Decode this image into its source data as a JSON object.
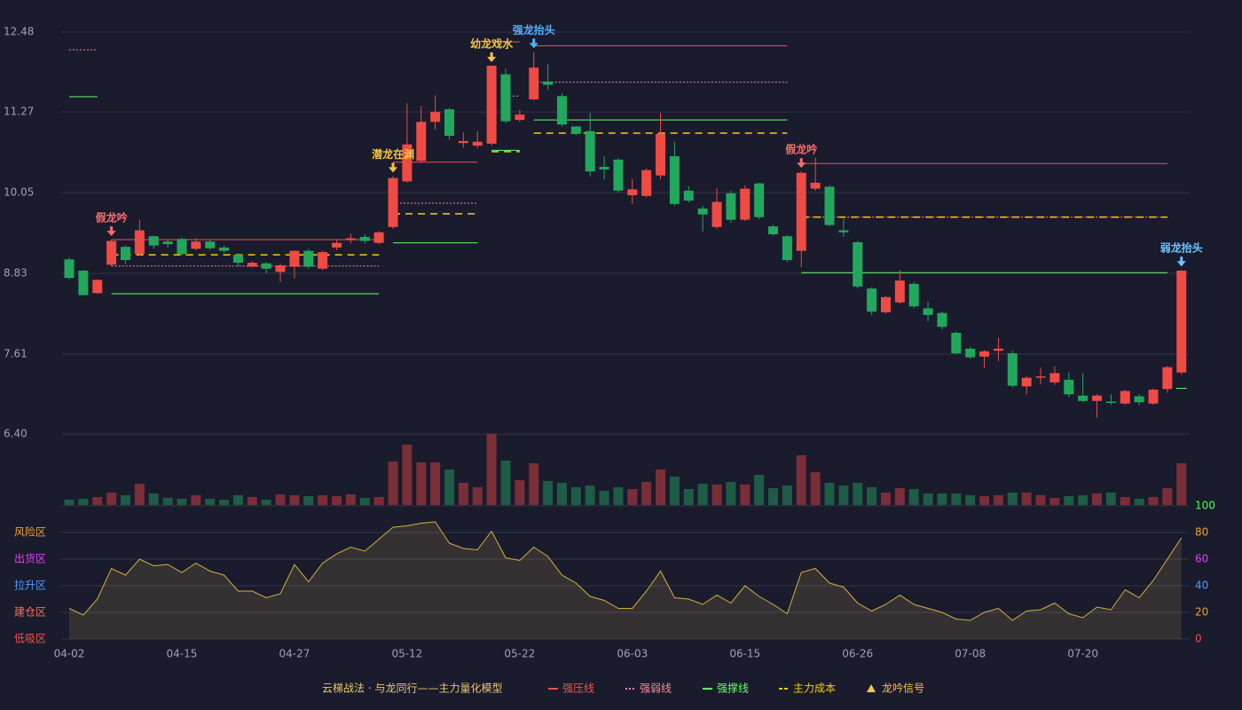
{
  "chart_data": {
    "type": "candlestick",
    "legend_title": "云梯战法 · 与龙同行——主力量化模型",
    "categories": [
      "04-02",
      null,
      null,
      null,
      null,
      null,
      null,
      null,
      "04-15",
      null,
      null,
      null,
      null,
      null,
      null,
      null,
      "04-27",
      null,
      null,
      null,
      null,
      null,
      null,
      null,
      "05-12",
      null,
      null,
      null,
      null,
      null,
      null,
      null,
      "05-22",
      null,
      null,
      null,
      null,
      null,
      null,
      null,
      "06-03",
      null,
      null,
      null,
      null,
      null,
      null,
      null,
      "06-15",
      null,
      null,
      null,
      null,
      null,
      null,
      null,
      "06-26",
      null,
      null,
      null,
      null,
      null,
      null,
      null,
      "07-08",
      null,
      null,
      null,
      null,
      null,
      null,
      null,
      "07-20",
      null,
      null,
      null,
      null,
      null,
      null,
      null
    ],
    "open": [
      9.04,
      8.87,
      8.53,
      8.96,
      9.23,
      9.12,
      9.39,
      9.31,
      9.35,
      9.2,
      9.31,
      9.22,
      9.11,
      8.93,
      8.98,
      8.85,
      8.93,
      9.17,
      8.9,
      9.22,
      9.33,
      9.38,
      9.29,
      9.53,
      10.22,
      10.53,
      11.12,
      11.31,
      10.8,
      10.76,
      10.79,
      11.84,
      11.15,
      11.46,
      11.73,
      11.51,
      11.05,
      10.98,
      10.44,
      10.55,
      10.01,
      10.0,
      10.31,
      10.6,
      10.08,
      9.81,
      9.53,
      10.04,
      9.64,
      10.19,
      9.54,
      9.39,
      9.17,
      10.11,
      10.14,
      9.48,
      9.3,
      8.6,
      8.24,
      8.39,
      8.67,
      8.3,
      8.23,
      7.93,
      7.69,
      7.57,
      7.66,
      7.62,
      7.12,
      7.25,
      7.18,
      7.22,
      6.98,
      6.9,
      6.89,
      6.86,
      6.97,
      6.86,
      7.08,
      7.33
    ],
    "high": [
      9.07,
      8.88,
      8.74,
      9.34,
      9.25,
      9.64,
      9.4,
      9.33,
      9.37,
      9.36,
      9.34,
      9.25,
      9.13,
      9.01,
      9.0,
      8.98,
      9.18,
      9.2,
      9.17,
      9.35,
      9.43,
      9.42,
      9.47,
      10.3,
      11.4,
      11.36,
      11.52,
      11.33,
      10.96,
      10.98,
      11.97,
      11.93,
      11.3,
      12.18,
      11.99,
      11.55,
      11.06,
      11.26,
      10.6,
      10.57,
      10.26,
      10.42,
      11.26,
      10.82,
      10.15,
      9.85,
      10.12,
      10.08,
      10.16,
      10.2,
      9.56,
      9.41,
      10.37,
      10.58,
      10.16,
      9.65,
      9.32,
      8.62,
      8.49,
      8.88,
      8.7,
      8.4,
      8.25,
      7.95,
      7.72,
      7.67,
      7.86,
      7.66,
      7.27,
      7.4,
      7.42,
      7.33,
      7.32,
      7.0,
      7.0,
      7.07,
      7.0,
      7.09,
      7.43,
      8.88
    ],
    "low": [
      8.74,
      8.5,
      8.52,
      8.94,
      8.97,
      9.1,
      9.2,
      9.22,
      9.1,
      9.18,
      9.18,
      9.14,
      8.94,
      8.92,
      8.83,
      8.7,
      8.75,
      8.9,
      8.88,
      9.18,
      9.28,
      9.28,
      9.27,
      9.5,
      10.2,
      10.5,
      11.0,
      10.85,
      10.73,
      10.72,
      10.76,
      11.1,
      11.12,
      11.44,
      11.6,
      11.05,
      10.92,
      10.3,
      10.25,
      10.05,
      9.88,
      9.98,
      10.25,
      9.85,
      9.9,
      9.46,
      9.5,
      9.6,
      9.62,
      9.65,
      9.4,
      9.0,
      8.92,
      10.08,
      9.54,
      9.38,
      8.6,
      8.2,
      8.22,
      8.37,
      8.3,
      8.1,
      7.98,
      7.6,
      7.54,
      7.4,
      7.5,
      7.1,
      7.0,
      7.15,
      7.14,
      6.96,
      6.88,
      6.65,
      6.84,
      6.84,
      6.84,
      6.84,
      7.02,
      7.3
    ],
    "close": [
      8.76,
      8.5,
      8.73,
      9.32,
      9.03,
      9.48,
      9.25,
      9.27,
      9.12,
      9.31,
      9.21,
      9.17,
      8.99,
      8.99,
      8.9,
      8.95,
      9.17,
      8.93,
      9.15,
      9.29,
      9.36,
      9.32,
      9.45,
      10.27,
      10.78,
      11.12,
      11.27,
      10.91,
      10.83,
      10.82,
      11.97,
      11.13,
      11.23,
      11.94,
      11.68,
      11.08,
      10.94,
      10.37,
      10.4,
      10.08,
      10.1,
      10.39,
      10.94,
      9.88,
      9.93,
      9.72,
      9.91,
      9.64,
      10.11,
      9.68,
      9.42,
      9.03,
      10.35,
      10.2,
      9.56,
      9.45,
      8.63,
      8.25,
      8.47,
      8.72,
      8.33,
      8.2,
      8.02,
      7.62,
      7.56,
      7.65,
      7.69,
      7.13,
      7.25,
      7.27,
      7.32,
      7.0,
      6.9,
      6.98,
      6.87,
      7.05,
      6.88,
      7.07,
      7.41,
      8.87
    ],
    "up_color": "#ef4b44",
    "down_color": "#22a85e",
    "up_volume_color": "#7a2e38",
    "down_volume_color": "#1d5c45",
    "ylim": [
      6.4,
      12.48
    ],
    "yticks": [
      {
        "value": 6.4,
        "label": "6.40"
      },
      7.61,
      8.83,
      10.05,
      11.27,
      12.48
    ],
    "volume": [
      6,
      7,
      9,
      14,
      11,
      24,
      13,
      8,
      7,
      11,
      7,
      6,
      11,
      9,
      6,
      12,
      11,
      10,
      11,
      10,
      12,
      8,
      9,
      49,
      68,
      48,
      48,
      40,
      25,
      20,
      80,
      50,
      28,
      47,
      27,
      25,
      20,
      22,
      16,
      20,
      18,
      26,
      40,
      32,
      18,
      24,
      23,
      26,
      23,
      34,
      19,
      22,
      56,
      37,
      25,
      22,
      25,
      20,
      14,
      19,
      18,
      13,
      13,
      13,
      11,
      10,
      11,
      14,
      14,
      11,
      8,
      10,
      11,
      13,
      14,
      9,
      7,
      9,
      19,
      47
    ],
    "volume_lim": [
      0,
      80
    ],
    "indicator": {
      "color": "#d4b03a",
      "values": [
        23,
        18,
        30,
        53,
        48,
        60,
        55,
        56,
        50,
        57,
        51,
        48,
        36,
        36,
        31,
        34,
        56,
        43,
        57,
        64,
        69,
        66,
        75,
        84,
        85,
        87,
        88,
        72,
        68,
        67,
        81,
        61,
        59,
        69,
        62,
        48,
        42,
        32,
        29,
        23,
        23,
        36,
        51,
        31,
        30,
        26,
        33,
        27,
        40,
        32,
        26,
        19,
        50,
        53,
        42,
        39,
        27,
        21,
        26,
        33,
        26,
        23,
        20,
        15,
        14,
        20,
        23,
        14,
        21,
        22,
        27,
        19,
        16,
        24,
        22,
        37,
        31,
        44,
        60,
        76
      ],
      "ylim": [
        0,
        100
      ],
      "yticks": [
        0,
        20,
        40,
        60,
        80,
        100
      ],
      "tick_colors": [
        "#ef5350",
        "#f0a030",
        "#4f9dff",
        "#e040fb",
        "#f0a030",
        "#4cff4c"
      ],
      "zones": [
        {
          "value": 80,
          "label": "风险区",
          "color": "#f0a030"
        },
        {
          "value": 60,
          "label": "出货区",
          "color": "#e040fb"
        },
        {
          "value": 40,
          "label": "拉升区",
          "color": "#4f9dff"
        },
        {
          "value": 20,
          "label": "建仓区",
          "color": "#ff6b5b"
        },
        {
          "value": 0,
          "label": "低吸区",
          "color": "#ef5350"
        }
      ]
    },
    "legend": [
      {
        "name": "强压线",
        "color": "#ef5350",
        "style": "solid"
      },
      {
        "name": "强弱线",
        "color": "#ff8a9a",
        "style": "dotted"
      },
      {
        "name": "强撑线",
        "color": "#66ff66",
        "style": "solid"
      },
      {
        "name": "主力成本",
        "color": "#f5d000",
        "style": "dashed"
      },
      {
        "name": "龙吟信号",
        "color": "#f5c542",
        "style": "triangle"
      }
    ],
    "lines": [
      {
        "kind": 1,
        "start": 0,
        "end": 2,
        "value": 12.21
      },
      {
        "kind": 2,
        "start": 0,
        "end": 2,
        "value": 11.5
      },
      {
        "kind": 0,
        "start": 3,
        "end": 22,
        "value": 9.34
      },
      {
        "kind": 1,
        "start": 3,
        "end": 22,
        "value": 8.94
      },
      {
        "kind": 3,
        "start": 3,
        "end": 22,
        "value": 9.11
      },
      {
        "kind": 2,
        "start": 3,
        "end": 22,
        "value": 8.52
      },
      {
        "kind": 0,
        "start": 23,
        "end": 29,
        "value": 10.51
      },
      {
        "kind": 1,
        "start": 23,
        "end": 29,
        "value": 9.89
      },
      {
        "kind": 3,
        "start": 23,
        "end": 29,
        "value": 9.73
      },
      {
        "kind": 2,
        "start": 23,
        "end": 29,
        "value": 9.29
      },
      {
        "kind": 0,
        "start": 30,
        "end": 32,
        "value": 12.33
      },
      {
        "kind": 1,
        "start": 31,
        "end": 32,
        "value": 11.51
      },
      {
        "kind": 3,
        "start": 30,
        "end": 32,
        "value": 10.67
      },
      {
        "kind": 2,
        "start": 30,
        "end": 32,
        "value": 10.69
      },
      {
        "kind": 0,
        "start": 33,
        "end": 51,
        "value": 12.27
      },
      {
        "kind": 1,
        "start": 33,
        "end": 51,
        "value": 11.72
      },
      {
        "kind": 2,
        "start": 33,
        "end": 51,
        "value": 11.15
      },
      {
        "kind": 3,
        "start": 33,
        "end": 51,
        "value": 10.95
      },
      {
        "kind": 0,
        "start": 52,
        "end": 78,
        "value": 10.49
      },
      {
        "kind": 1,
        "start": 52,
        "end": 78,
        "value": 9.68
      },
      {
        "kind": 3,
        "start": 52,
        "end": 78,
        "value": 9.68
      },
      {
        "kind": 2,
        "start": 52,
        "end": 78,
        "value": 8.84
      },
      {
        "kind": 2,
        "start": 79,
        "end": 79,
        "value": 7.09
      }
    ],
    "signals": [
      {
        "index": 3,
        "label": "假龙吟",
        "color": "#ff6b6b"
      },
      {
        "index": 23,
        "label": "潜龙在渊",
        "color": "#f5c542"
      },
      {
        "index": 30,
        "label": "幼龙戏水",
        "color": "#f5c542"
      },
      {
        "index": 33,
        "label": "强龙抬头",
        "color": "#4fb3ff"
      },
      {
        "index": 52,
        "label": "假龙吟",
        "color": "#ff6b6b"
      },
      {
        "index": 79,
        "label": "弱龙抬头",
        "color": "#6ec6ff"
      }
    ]
  }
}
